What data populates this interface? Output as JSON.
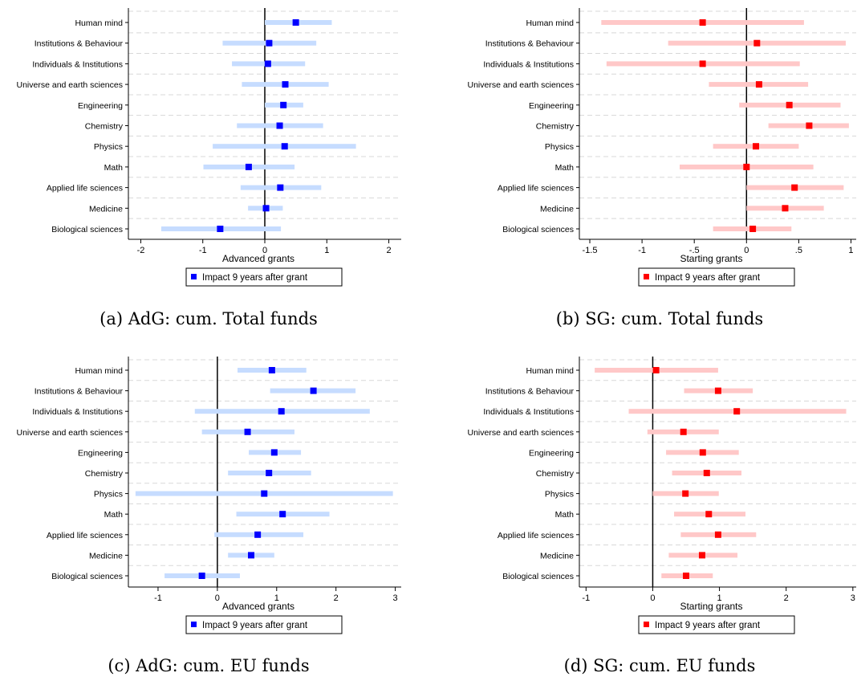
{
  "categories": [
    "Human mind",
    "Institutions & Behaviour",
    "Individuals & Institutions",
    "Universe and earth sciences",
    "Engineering",
    "Chemistry",
    "Physics",
    "Math",
    "Applied life sciences",
    "Medicine",
    "Biological sciences"
  ],
  "legend_label": "Impact 9 years after grant",
  "colors": {
    "adg_marker": "#0000ff",
    "adg_ci": "#c6dcff",
    "sg_marker": "#ff0000",
    "sg_ci": "#ffc8c8"
  },
  "chart_data": [
    {
      "type": "scatter",
      "panel": "a",
      "caption": "(a) AdG: cum. Total funds",
      "xlabel": "Advanced grants",
      "xlim": [
        -2.2,
        2.2
      ],
      "xticks": [
        -2,
        -1,
        0,
        1,
        2
      ],
      "xtick_labels": [
        "-2",
        "-1",
        "0",
        "1",
        "2"
      ],
      "series": [
        {
          "name": "Impact 9 years after grant",
          "values": [
            0.5,
            0.07,
            0.05,
            0.33,
            0.3,
            0.24,
            0.32,
            -0.26,
            0.25,
            0.02,
            -0.72
          ],
          "ci_low": [
            0.0,
            -0.68,
            -0.53,
            -0.37,
            0.0,
            -0.45,
            -0.84,
            -0.99,
            -0.39,
            -0.27,
            -1.67
          ],
          "ci_high": [
            1.08,
            0.83,
            0.65,
            1.03,
            0.62,
            0.94,
            1.47,
            0.48,
            0.91,
            0.29,
            0.26
          ]
        }
      ]
    },
    {
      "type": "scatter",
      "panel": "b",
      "caption": "(b) SG: cum. Total funds",
      "xlabel": "Starting grants",
      "xlim": [
        -1.6,
        1.05
      ],
      "xticks": [
        -1.5,
        -1,
        -0.5,
        0,
        0.5,
        1
      ],
      "xtick_labels": [
        "-1.5",
        "-1",
        "-.5",
        "0",
        ".5",
        "1"
      ],
      "series": [
        {
          "name": "Impact 9 years after grant",
          "values": [
            -0.42,
            0.1,
            -0.42,
            0.12,
            0.41,
            0.6,
            0.09,
            0.0,
            0.46,
            0.37,
            0.06
          ],
          "ci_low": [
            -1.39,
            -0.75,
            -1.34,
            -0.36,
            -0.07,
            0.21,
            -0.32,
            -0.64,
            0.0,
            0.0,
            -0.32
          ],
          "ci_high": [
            0.55,
            0.95,
            0.51,
            0.59,
            0.9,
            0.98,
            0.5,
            0.64,
            0.93,
            0.74,
            0.43
          ]
        }
      ]
    },
    {
      "type": "scatter",
      "panel": "c",
      "caption": "(c) AdG: cum. EU funds",
      "xlabel": "Advanced grants",
      "xlim": [
        -1.5,
        3.1
      ],
      "xticks": [
        -1,
        0,
        1,
        2,
        3
      ],
      "xtick_labels": [
        "-1",
        "0",
        "1",
        "2",
        "3"
      ],
      "series": [
        {
          "name": "Impact 9 years after grant",
          "values": [
            0.92,
            1.62,
            1.08,
            0.51,
            0.96,
            0.87,
            0.79,
            1.1,
            0.68,
            0.57,
            -0.26
          ],
          "ci_low": [
            0.34,
            0.89,
            -0.38,
            -0.26,
            0.53,
            0.18,
            -1.38,
            0.32,
            -0.05,
            0.18,
            -0.89
          ],
          "ci_high": [
            1.5,
            2.33,
            2.57,
            1.3,
            1.41,
            1.58,
            2.96,
            1.89,
            1.45,
            0.96,
            0.38
          ]
        }
      ]
    },
    {
      "type": "scatter",
      "panel": "d",
      "caption": "(d) SG: cum. EU funds",
      "xlabel": "Starting grants",
      "xlim": [
        -1.1,
        3.05
      ],
      "xticks": [
        -1,
        0,
        1,
        2,
        3
      ],
      "xtick_labels": [
        "-1",
        "0",
        "1",
        "2",
        "3"
      ],
      "series": [
        {
          "name": "Impact 9 years after grant",
          "values": [
            0.05,
            0.98,
            1.26,
            0.46,
            0.75,
            0.81,
            0.49,
            0.84,
            0.98,
            0.74,
            0.5
          ],
          "ci_low": [
            -0.87,
            0.47,
            -0.36,
            -0.08,
            0.2,
            0.29,
            0.0,
            0.32,
            0.42,
            0.24,
            0.13
          ],
          "ci_high": [
            0.98,
            1.5,
            2.9,
            0.99,
            1.29,
            1.33,
            0.99,
            1.39,
            1.55,
            1.27,
            0.9
          ]
        }
      ]
    }
  ]
}
